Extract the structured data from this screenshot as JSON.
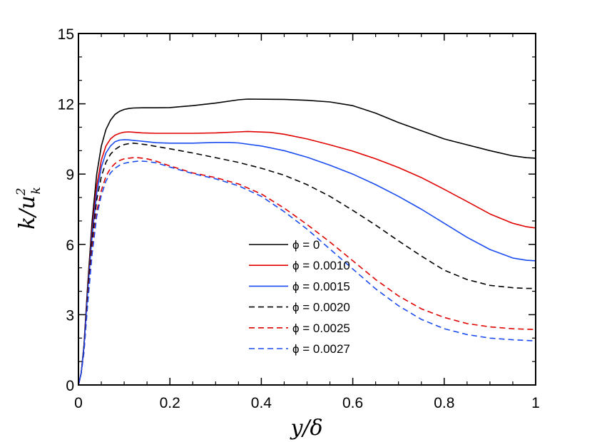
{
  "chart_data": {
    "type": "line",
    "title": "",
    "xlabel": "y/δ",
    "ylabel": "k/u²_k",
    "ylabel_parts": {
      "base": "k/u",
      "sup": "2",
      "sub": "k"
    },
    "xlabel_parts": {
      "a": "y/",
      "b": "δ"
    },
    "xlim": [
      0,
      1
    ],
    "ylim": [
      0,
      15
    ],
    "x_ticks": [
      0,
      0.2,
      0.4,
      0.6,
      0.8,
      1
    ],
    "x_tick_labels": [
      "0",
      "0.2",
      "0.4",
      "0.6",
      "0.8",
      "1"
    ],
    "y_ticks": [
      0,
      3,
      6,
      9,
      12,
      15
    ],
    "y_tick_labels": [
      "0",
      "3",
      "6",
      "9",
      "12",
      "15"
    ],
    "legend_position": "center",
    "grid": false,
    "series": [
      {
        "name": "ϕ = 0",
        "color": "#000000",
        "dash": "solid",
        "x": [
          0,
          0.006,
          0.012,
          0.02,
          0.03,
          0.04,
          0.05,
          0.06,
          0.07,
          0.08,
          0.09,
          0.1,
          0.11,
          0.12,
          0.14,
          0.17,
          0.2,
          0.25,
          0.3,
          0.35,
          0.37,
          0.45,
          0.5,
          0.55,
          0.6,
          0.65,
          0.7,
          0.75,
          0.8,
          0.85,
          0.9,
          0.95,
          0.98,
          1.0
        ],
        "y": [
          0,
          0.5,
          1.7,
          4.2,
          7.0,
          9.0,
          10.2,
          10.9,
          11.3,
          11.55,
          11.68,
          11.76,
          11.8,
          11.82,
          11.83,
          11.83,
          11.84,
          11.92,
          12.03,
          12.17,
          12.2,
          12.19,
          12.15,
          12.08,
          11.92,
          11.6,
          11.2,
          10.85,
          10.5,
          10.25,
          10.0,
          9.78,
          9.7,
          9.68
        ]
      },
      {
        "name": "ϕ = 0.0010",
        "color": "#e00000",
        "dash": "solid",
        "x": [
          0,
          0.006,
          0.012,
          0.02,
          0.03,
          0.04,
          0.05,
          0.06,
          0.07,
          0.08,
          0.09,
          0.1,
          0.11,
          0.12,
          0.14,
          0.17,
          0.2,
          0.25,
          0.3,
          0.35,
          0.37,
          0.42,
          0.45,
          0.5,
          0.55,
          0.6,
          0.65,
          0.7,
          0.75,
          0.8,
          0.85,
          0.9,
          0.95,
          0.98,
          1.0
        ],
        "y": [
          0,
          0.5,
          1.6,
          4.0,
          6.6,
          8.5,
          9.6,
          10.2,
          10.5,
          10.66,
          10.74,
          10.79,
          10.8,
          10.79,
          10.76,
          10.74,
          10.74,
          10.74,
          10.76,
          10.8,
          10.82,
          10.78,
          10.7,
          10.5,
          10.25,
          9.98,
          9.65,
          9.28,
          8.85,
          8.35,
          7.83,
          7.3,
          6.9,
          6.75,
          6.7
        ]
      },
      {
        "name": "ϕ = 0.0015",
        "color": "#1a4cf0",
        "dash": "solid",
        "x": [
          0,
          0.006,
          0.012,
          0.02,
          0.03,
          0.04,
          0.05,
          0.06,
          0.07,
          0.08,
          0.09,
          0.1,
          0.11,
          0.12,
          0.13,
          0.15,
          0.17,
          0.2,
          0.25,
          0.3,
          0.33,
          0.35,
          0.4,
          0.45,
          0.5,
          0.55,
          0.6,
          0.65,
          0.7,
          0.75,
          0.8,
          0.85,
          0.9,
          0.95,
          0.98,
          1.0
        ],
        "y": [
          0,
          0.5,
          1.6,
          3.9,
          6.4,
          8.2,
          9.3,
          9.9,
          10.2,
          10.38,
          10.45,
          10.47,
          10.46,
          10.44,
          10.42,
          10.38,
          10.34,
          10.32,
          10.32,
          10.35,
          10.35,
          10.33,
          10.2,
          10.0,
          9.72,
          9.38,
          9.0,
          8.55,
          8.05,
          7.5,
          6.9,
          6.3,
          5.78,
          5.42,
          5.32,
          5.3
        ]
      },
      {
        "name": "ϕ = 0.0020",
        "color": "#000000",
        "dash": "dashed",
        "x": [
          0,
          0.006,
          0.012,
          0.02,
          0.03,
          0.04,
          0.05,
          0.06,
          0.07,
          0.08,
          0.09,
          0.1,
          0.11,
          0.12,
          0.13,
          0.15,
          0.17,
          0.2,
          0.25,
          0.3,
          0.35,
          0.4,
          0.45,
          0.5,
          0.55,
          0.6,
          0.65,
          0.7,
          0.75,
          0.8,
          0.85,
          0.9,
          0.95,
          0.98,
          1.0
        ],
        "y": [
          0,
          0.5,
          1.5,
          3.8,
          6.2,
          7.9,
          8.9,
          9.5,
          9.85,
          10.05,
          10.18,
          10.26,
          10.3,
          10.32,
          10.3,
          10.25,
          10.18,
          10.08,
          9.9,
          9.7,
          9.5,
          9.25,
          8.95,
          8.55,
          8.05,
          7.45,
          6.82,
          6.15,
          5.5,
          4.9,
          4.5,
          4.25,
          4.15,
          4.12,
          4.12
        ]
      },
      {
        "name": "ϕ = 0.0025",
        "color": "#e00000",
        "dash": "dashed",
        "x": [
          0,
          0.006,
          0.012,
          0.02,
          0.03,
          0.04,
          0.05,
          0.06,
          0.07,
          0.08,
          0.09,
          0.1,
          0.11,
          0.12,
          0.13,
          0.14,
          0.15,
          0.17,
          0.2,
          0.25,
          0.3,
          0.35,
          0.4,
          0.45,
          0.5,
          0.55,
          0.6,
          0.65,
          0.7,
          0.75,
          0.8,
          0.85,
          0.9,
          0.95,
          0.98,
          1.0
        ],
        "y": [
          0,
          0.5,
          1.4,
          3.5,
          5.8,
          7.4,
          8.3,
          8.9,
          9.25,
          9.45,
          9.58,
          9.65,
          9.68,
          9.7,
          9.7,
          9.68,
          9.65,
          9.55,
          9.35,
          9.05,
          8.85,
          8.58,
          8.15,
          7.55,
          6.85,
          6.1,
          5.3,
          4.5,
          3.8,
          3.25,
          2.88,
          2.62,
          2.48,
          2.4,
          2.38,
          2.37
        ]
      },
      {
        "name": "ϕ = 0.0027",
        "color": "#1a4cf0",
        "dash": "dashed",
        "x": [
          0,
          0.006,
          0.012,
          0.02,
          0.03,
          0.04,
          0.05,
          0.06,
          0.07,
          0.08,
          0.09,
          0.1,
          0.11,
          0.12,
          0.13,
          0.14,
          0.15,
          0.17,
          0.2,
          0.25,
          0.3,
          0.35,
          0.4,
          0.45,
          0.5,
          0.55,
          0.6,
          0.65,
          0.7,
          0.75,
          0.8,
          0.85,
          0.9,
          0.95,
          0.98,
          1.0
        ],
        "y": [
          0,
          0.5,
          1.4,
          3.4,
          5.6,
          7.2,
          8.1,
          8.7,
          9.05,
          9.25,
          9.38,
          9.46,
          9.5,
          9.53,
          9.55,
          9.55,
          9.54,
          9.48,
          9.3,
          9.02,
          8.8,
          8.5,
          8.05,
          7.4,
          6.65,
          5.8,
          4.95,
          4.1,
          3.38,
          2.8,
          2.4,
          2.15,
          2.0,
          1.93,
          1.9,
          1.88
        ]
      }
    ]
  }
}
